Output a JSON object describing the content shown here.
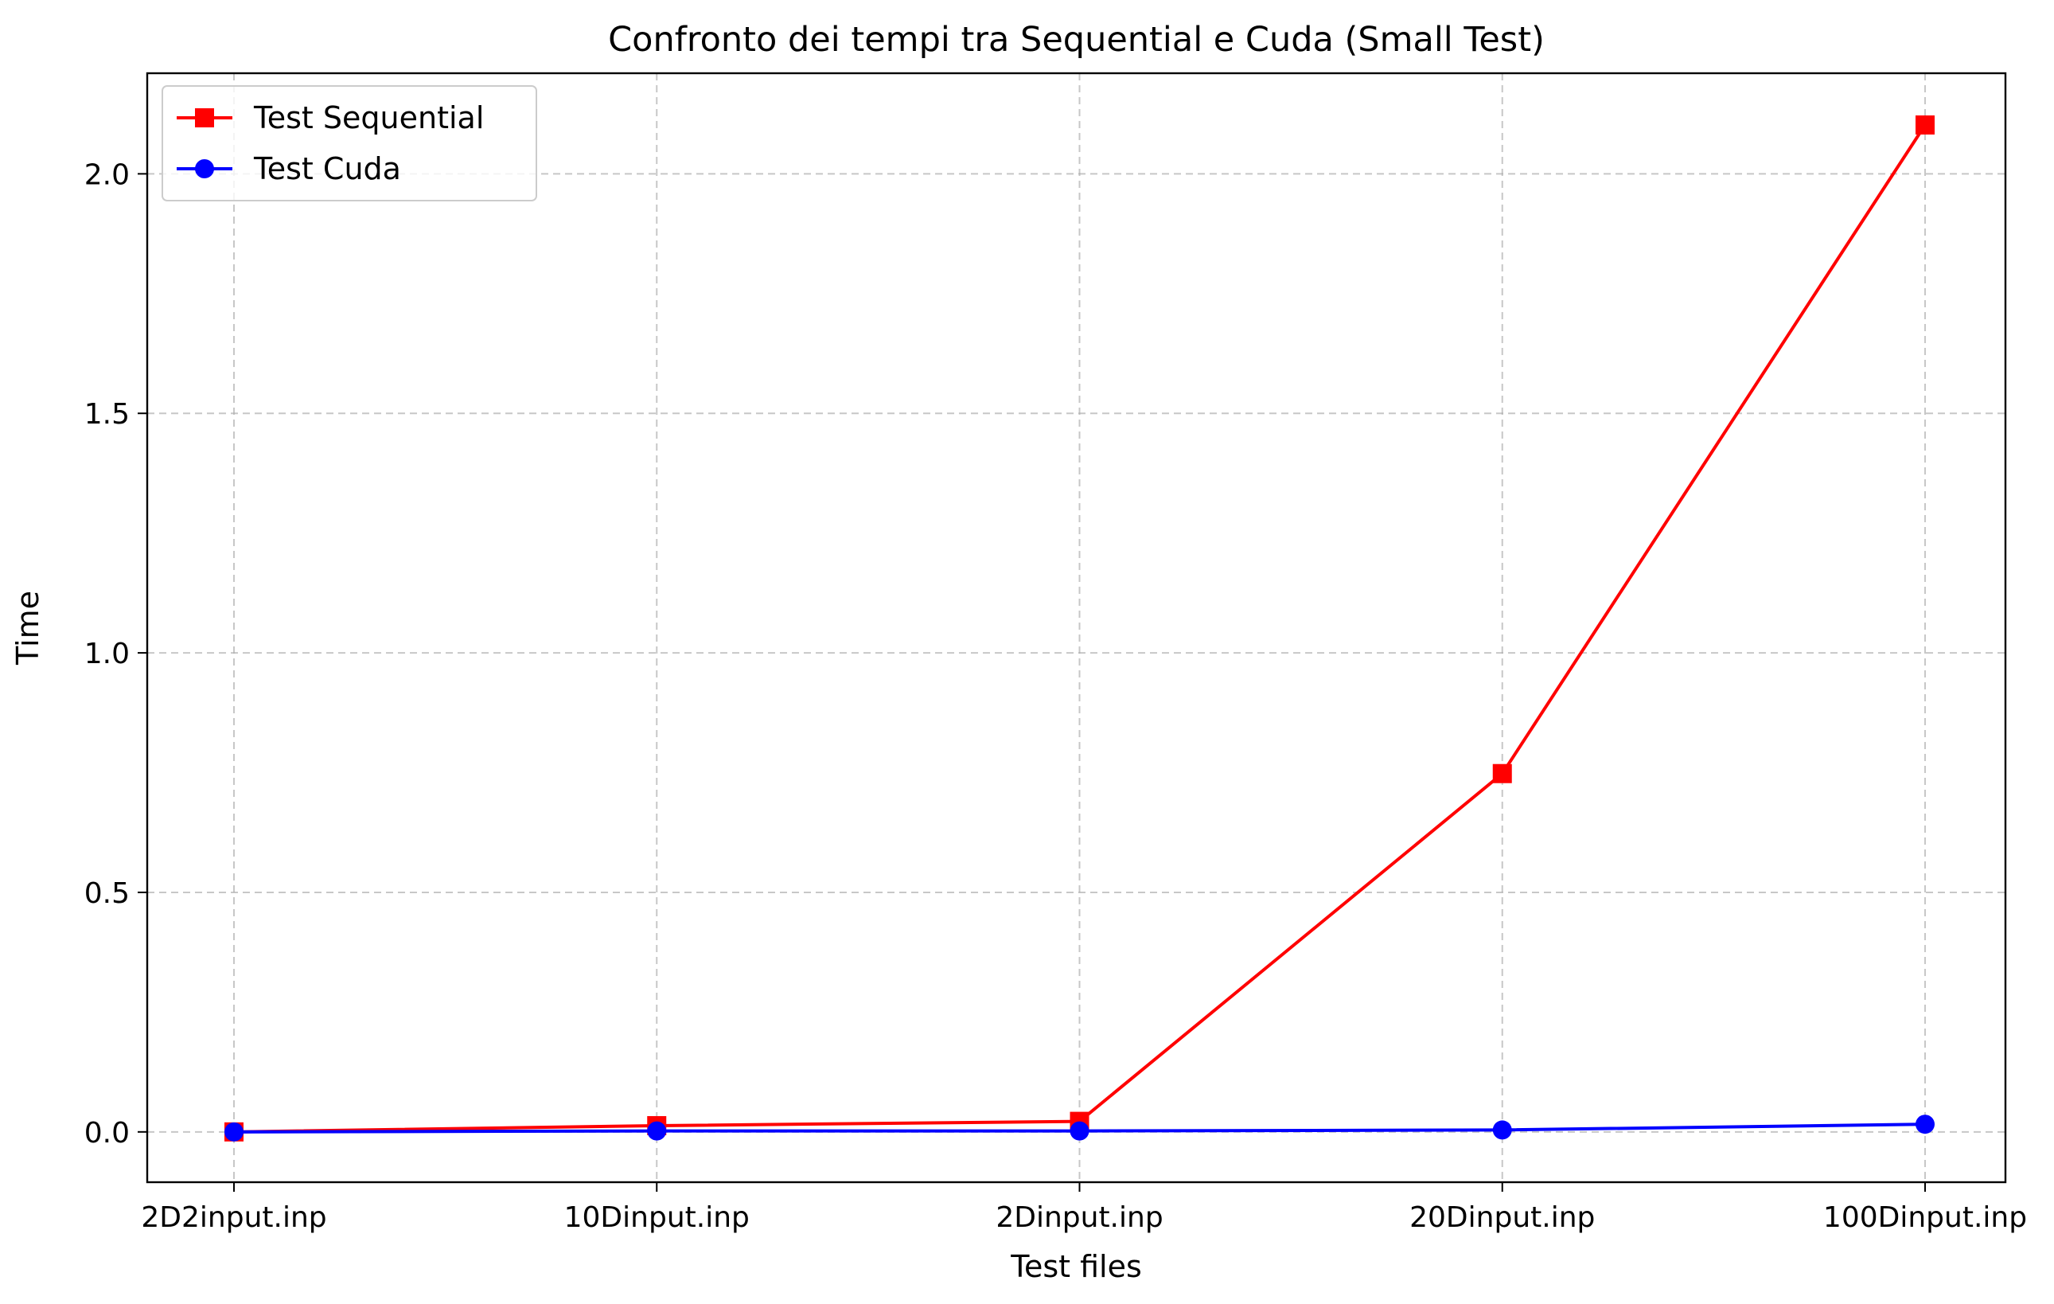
{
  "chart_data": {
    "type": "line",
    "title": "Confronto dei tempi tra Sequential e Cuda (Small Test)",
    "xlabel": "Test files",
    "ylabel": "Time",
    "categories": [
      "2D2input.inp",
      "10Dinput.inp",
      "2Dinput.inp",
      "20Dinput.inp",
      "100Dinput.inp"
    ],
    "series": [
      {
        "name": "Test Sequential",
        "color": "#ff0000",
        "marker": "square",
        "values": [
          0.0,
          0.013,
          0.022,
          0.748,
          2.102
        ]
      },
      {
        "name": "Test Cuda",
        "color": "#0000ff",
        "marker": "circle",
        "values": [
          0.0,
          0.002,
          0.002,
          0.004,
          0.016
        ]
      }
    ],
    "ylim": [
      -0.105,
      2.21
    ],
    "yticks": [
      "0.0",
      "0.5",
      "1.0",
      "1.5",
      "2.0"
    ],
    "grid": true,
    "legend_position": "top-left"
  }
}
